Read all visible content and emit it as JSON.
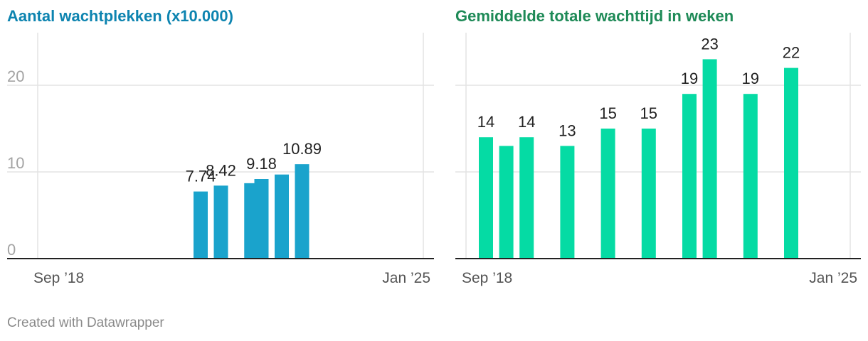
{
  "footer": {
    "credit": "Created with Datawrapper"
  },
  "chart_data": [
    {
      "type": "bar",
      "title": "Aantal wachtplekken (x10.000)",
      "title_color": "#0d84b0",
      "bar_color": "#1aa3cc",
      "x": [
        "2018-09",
        "2018-12",
        "2019-03",
        "2019-06",
        "2019-09",
        "2019-12",
        "2020-03",
        "2020-06",
        "2020-09",
        "2020-12",
        "2021-03",
        "2021-06",
        "2021-09",
        "2021-12",
        "2022-03",
        "2022-06",
        "2022-09",
        "2022-12",
        "2023-03",
        "2023-06",
        "2023-09",
        "2023-12",
        "2024-03",
        "2024-06",
        "2024-09",
        "2024-12",
        "2025-01"
      ],
      "values": [
        null,
        null,
        null,
        null,
        null,
        null,
        null,
        null,
        null,
        null,
        null,
        null,
        null,
        null,
        null,
        null,
        7.74,
        null,
        8.42,
        null,
        null,
        8.7,
        9.18,
        null,
        9.7,
        null,
        10.89
      ],
      "data_labels": [
        null,
        null,
        null,
        null,
        null,
        null,
        null,
        null,
        null,
        null,
        null,
        null,
        null,
        null,
        null,
        null,
        "7.74",
        null,
        "8.42",
        null,
        null,
        null,
        "9.18",
        null,
        null,
        null,
        "10.89"
      ],
      "x_tick_labels": [
        "Sep ’18",
        "Jan ’25"
      ],
      "ylim": [
        0,
        26
      ],
      "yticks": [
        0,
        10,
        20
      ],
      "y_tick_labels": [
        "0",
        "10",
        "20"
      ],
      "grid": true,
      "xlabel": "",
      "ylabel": ""
    },
    {
      "type": "bar",
      "title": "Gemiddelde totale wachttijd in weken",
      "title_color": "#1e8a57",
      "bar_color": "#05dba4",
      "x": [
        "2018-09",
        "2018-12",
        "2019-03",
        "2019-06",
        "2019-09",
        "2019-12",
        "2020-03",
        "2020-06",
        "2020-09",
        "2020-12",
        "2021-03",
        "2021-06",
        "2021-09",
        "2021-12",
        "2022-03",
        "2022-06",
        "2022-09",
        "2022-12",
        "2023-03",
        "2023-06",
        "2023-09",
        "2023-12",
        "2024-03",
        "2024-06",
        "2024-09",
        "2024-12",
        "2025-01"
      ],
      "values": [
        14,
        13,
        14,
        null,
        13,
        null,
        15,
        null,
        15,
        null,
        19,
        23,
        null,
        19,
        null,
        22,
        null,
        null,
        null,
        null,
        null,
        null,
        null,
        null,
        null,
        null,
        null
      ],
      "data_labels": [
        "14",
        null,
        "14",
        null,
        "13",
        null,
        "15",
        null,
        "15",
        null,
        "19",
        "23",
        null,
        "19",
        null,
        "22",
        null,
        null,
        null,
        null,
        null,
        null,
        null,
        null,
        null,
        null,
        null
      ],
      "x_tick_labels": [
        "Sep ’18",
        "Jan ’25"
      ],
      "ylim": [
        0,
        26
      ],
      "yticks": [
        0,
        10,
        20
      ],
      "y_tick_labels": [
        "",
        "",
        ""
      ],
      "grid": true,
      "xlabel": "",
      "ylabel": ""
    }
  ]
}
